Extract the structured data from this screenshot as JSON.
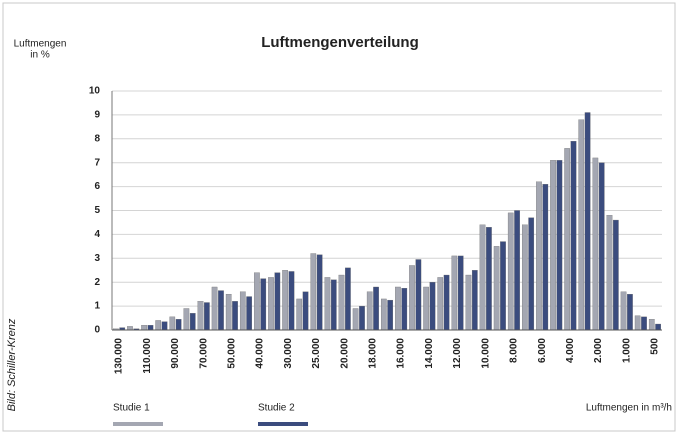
{
  "chart_data": {
    "type": "bar",
    "title": "Luftmengenverteilung",
    "ylabel": [
      "Luftmengen",
      "in %"
    ],
    "xlabel": "Luftmengen in m³/h",
    "credit": "Bild: Schiller-Krenz",
    "categories": [
      "130.000",
      null,
      "110.000",
      null,
      "90.000",
      null,
      "70.000",
      null,
      "50.000",
      null,
      "40.000",
      null,
      "30.000",
      null,
      "25.000",
      null,
      "20.000",
      null,
      "18.000",
      null,
      "16.000",
      null,
      "14.000",
      null,
      "12.000",
      null,
      "10.000",
      null,
      "8.000",
      null,
      "6.000",
      null,
      "4.000",
      null,
      "2.000",
      null,
      "1.000",
      null,
      "500"
    ],
    "series": [
      {
        "name": "Studie 1",
        "color": "#a4a7b2",
        "values": [
          0.05,
          0.15,
          0.2,
          0.4,
          0.55,
          0.9,
          1.2,
          1.8,
          1.5,
          1.6,
          2.4,
          2.2,
          2.5,
          1.3,
          3.2,
          2.2,
          2.3,
          0.9,
          1.6,
          1.3,
          1.8,
          2.7,
          1.8,
          2.2,
          3.1,
          2.3,
          4.4,
          3.5,
          4.9,
          4.4,
          6.2,
          7.1,
          7.6,
          8.8,
          7.2,
          4.8,
          1.6,
          0.6,
          0.45
        ]
      },
      {
        "name": "Studie 2",
        "color": "#3b4c7e",
        "values": [
          0.1,
          0.05,
          0.2,
          0.35,
          0.45,
          0.7,
          1.15,
          1.65,
          1.2,
          1.4,
          2.15,
          2.4,
          2.45,
          1.6,
          3.15,
          2.1,
          2.6,
          1.0,
          1.8,
          1.25,
          1.75,
          2.95,
          2.0,
          2.3,
          3.1,
          2.5,
          4.3,
          3.7,
          5.0,
          4.7,
          6.1,
          7.1,
          7.9,
          9.1,
          7.0,
          4.6,
          1.5,
          0.55,
          0.25
        ]
      }
    ],
    "ylim": [
      0,
      10
    ],
    "yticks": [
      0,
      1,
      2,
      3,
      4,
      5,
      6,
      7,
      8,
      9,
      10
    ],
    "grid": true
  }
}
